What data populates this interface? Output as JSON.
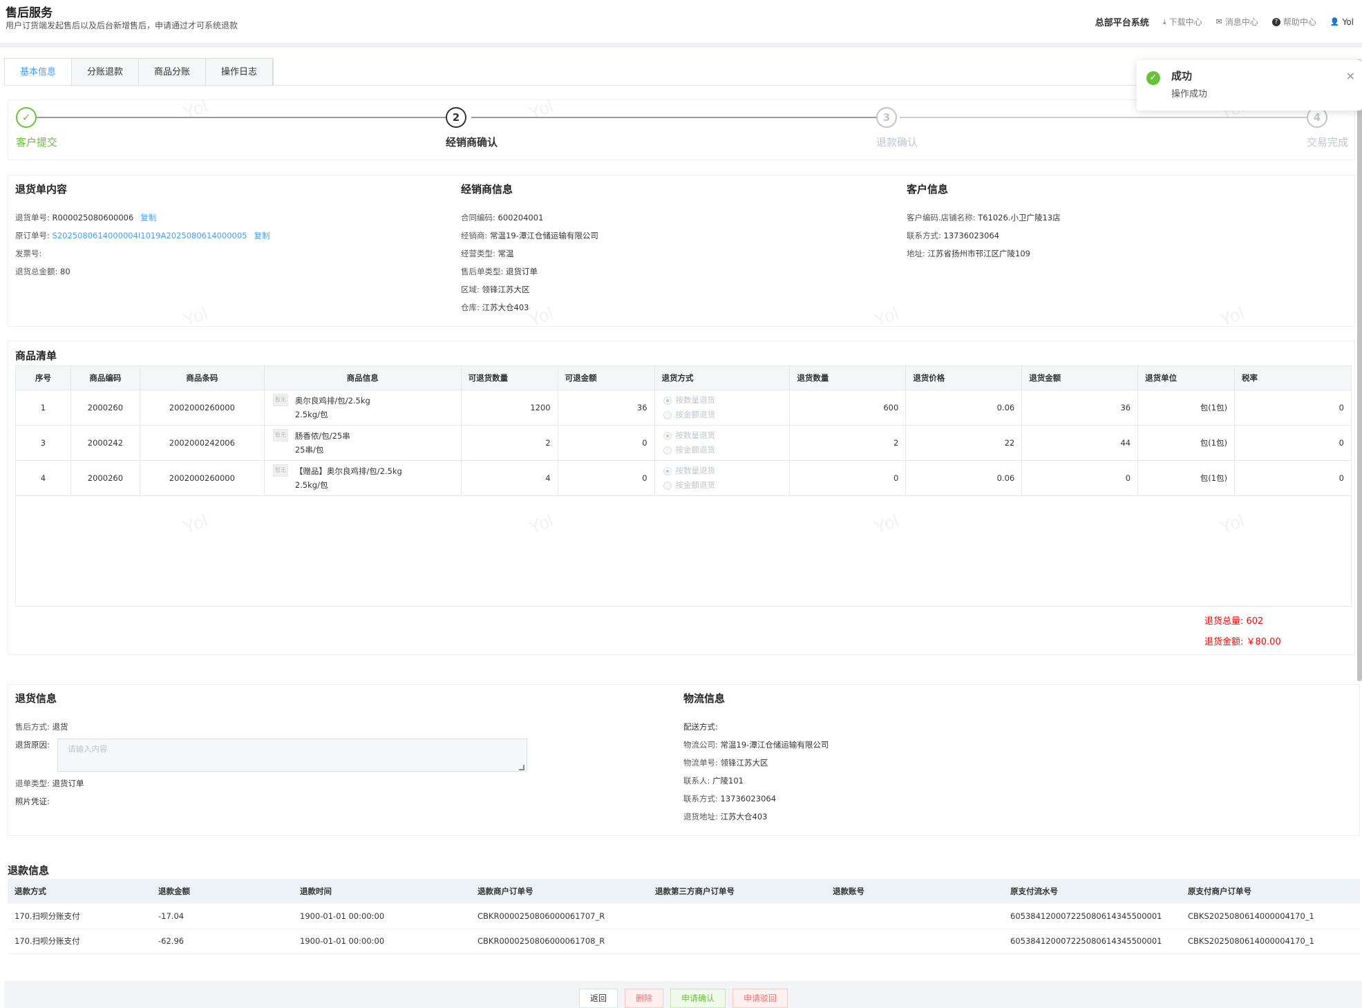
{
  "header": {
    "title": "售后服务",
    "subtitle": "用户订货端发起售后以及后台新增售后，申请通过才可系统退款",
    "system": "总部平台系统",
    "download": "下载中心",
    "messages": "消息中心",
    "help": "帮助中心",
    "user": "Yol"
  },
  "tabs": [
    "基本信息",
    "分账退款",
    "商品分账",
    "操作日志"
  ],
  "steps": [
    {
      "num": "✓",
      "label": "客户提交"
    },
    {
      "num": "2",
      "label": "经销商确认"
    },
    {
      "num": "3",
      "label": "退款确认"
    },
    {
      "num": "4",
      "label": "交易完成"
    }
  ],
  "watermark": "Yol",
  "return_doc": {
    "title": "退货单内容",
    "no_label": "退货单号:",
    "no": "R000025080600006",
    "copy": "复制",
    "orig_label": "原订单号:",
    "orig": "S2025080614000004I1019A2025080614000005",
    "invoice_label": "发票号:",
    "total_label": "退货总金额:",
    "total": "80"
  },
  "dealer": {
    "title": "经销商信息",
    "contract_label": "合同编码:",
    "contract": "600204001",
    "dealer_label": "经销商:",
    "dealer": "常温19-潭江仓储运输有限公司",
    "biz_label": "经营类型:",
    "biz": "常温",
    "type_label": "售后单类型:",
    "type": "退货订单",
    "area_label": "区域:",
    "area": "领锋江苏大区",
    "wh_label": "仓库:",
    "wh": "江苏大仓403"
  },
  "customer": {
    "title": "客户信息",
    "code_label": "客户编码.店铺名称:",
    "code": "T61026.小卫广陵13店",
    "phone_label": "联系方式:",
    "phone": "13736023064",
    "addr_label": "地址:",
    "addr": "江苏省扬州市邗江区广陵109"
  },
  "goods": {
    "title": "商品清单",
    "headers": [
      "序号",
      "商品编码",
      "商品条码",
      "商品信息",
      "可退货数量",
      "可退金额",
      "退货方式",
      "退货数量",
      "退货价格",
      "退货金额",
      "退货单位",
      "税率"
    ],
    "img_text": "暂无",
    "radio_qty": "按数量退货",
    "radio_amt": "按金额退货",
    "rows": [
      {
        "seq": "1",
        "code": "2000260",
        "barcode": "2002000260000",
        "name": "奥尔良鸡排/包/2.5kg",
        "spec": "2.5kg/包",
        "avail_qty": "1200",
        "avail_amt": "36",
        "qty": "600",
        "price": "0.06",
        "amount": "36",
        "unit": "包(1包)",
        "tax": "0"
      },
      {
        "seq": "3",
        "code": "2000242",
        "barcode": "2002000242006",
        "name": "肠香侬/包/25串",
        "spec": "25串/包",
        "avail_qty": "2",
        "avail_amt": "0",
        "qty": "2",
        "price": "22",
        "amount": "44",
        "unit": "包(1包)",
        "tax": "0"
      },
      {
        "seq": "4",
        "code": "2000260",
        "barcode": "2002000260000",
        "name": "【赠品】奥尔良鸡排/包/2.5kg",
        "spec": "2.5kg/包",
        "avail_qty": "4",
        "avail_amt": "0",
        "qty": "0",
        "price": "0.06",
        "amount": "0",
        "unit": "包(1包)",
        "tax": "0"
      }
    ],
    "total_qty": "退货总量: 602",
    "total_amt": "退货金额: ￥80.00"
  },
  "return_info": {
    "title": "退货信息",
    "method_label": "售后方式:",
    "method": "退货",
    "reason_label": "退货原因:",
    "reason_placeholder": "请输入内容",
    "type_label": "退单类型:",
    "type": "退货订单",
    "photo_label": "照片凭证:"
  },
  "logistics": {
    "title": "物流信息",
    "ship_label": "配送方式:",
    "company_label": "物流公司:",
    "company": "常温19-潭江仓储运输有限公司",
    "no_label": "物流单号:",
    "no": "领锋江苏大区",
    "contact_label": "联系人:",
    "contact": "广陵101",
    "phone_label": "联系方式:",
    "phone": "13736023064",
    "addr_label": "退货地址:",
    "addr": "江苏大仓403"
  },
  "refund": {
    "title": "退款信息",
    "headers": [
      "退款方式",
      "退款金额",
      "退款时间",
      "退款商户订单号",
      "退款第三方商户订单号",
      "退款账号",
      "原支付流水号",
      "原支付商户订单号"
    ],
    "rows": [
      [
        "170.扫呗分账支付",
        "-17.04",
        "1900-01-01 00:00:00",
        "CBKR0000250806000061707_R",
        "",
        "",
        "605384120007225080614345500001",
        "CBKS2025080614000004170_1"
      ],
      [
        "170.扫呗分账支付",
        "-62.96",
        "1900-01-01 00:00:00",
        "CBKR0000250806000061708_R",
        "",
        "",
        "605384120007225080614345500001",
        "CBKS2025080614000004170_1"
      ]
    ]
  },
  "buttons": {
    "back": "返回",
    "delete": "删除",
    "confirm": "申请确认",
    "reject": "申请驳回"
  },
  "toast": {
    "title": "成功",
    "message": "操作成功"
  },
  "colors": {
    "primary": "#409eff",
    "success": "#67c23a",
    "danger": "#f56c6c",
    "total": "#ff0000"
  }
}
